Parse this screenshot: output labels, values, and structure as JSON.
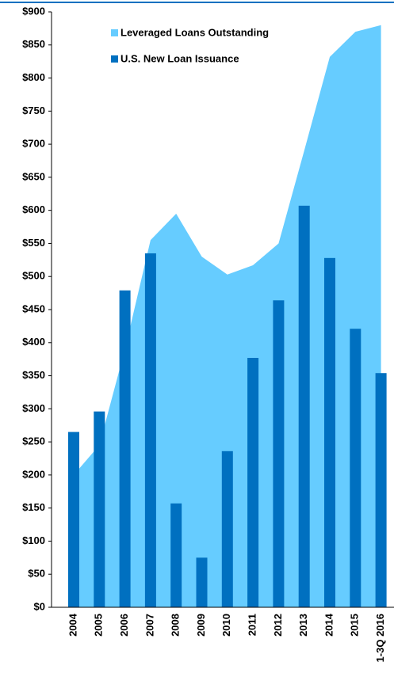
{
  "chart_data": {
    "type": "bar_area",
    "categories": [
      "2004",
      "2005",
      "2006",
      "2007",
      "2008",
      "2009",
      "2010",
      "2011",
      "2012",
      "2013",
      "2014",
      "2015",
      "1-3Q 2016"
    ],
    "series": [
      {
        "name": "Leveraged Loans Outstanding",
        "color": "#66ccff",
        "kind": "area",
        "values": [
          200,
          245,
          390,
          555,
          595,
          530,
          503,
          517,
          550,
          690,
          832,
          870,
          880
        ]
      },
      {
        "name": "U.S. New Loan Issuance",
        "color": "#0070c0",
        "kind": "bar",
        "values": [
          265,
          296,
          479,
          535,
          157,
          75,
          236,
          377,
          464,
          607,
          528,
          421,
          354
        ]
      }
    ],
    "ylim": [
      0,
      900
    ],
    "yticks": [
      {
        "value": 0,
        "label": "$0"
      },
      {
        "value": 50,
        "label": "$50"
      },
      {
        "value": 100,
        "label": "$100"
      },
      {
        "value": 150,
        "label": "$150"
      },
      {
        "value": 200,
        "label": "$200"
      },
      {
        "value": 250,
        "label": "$250"
      },
      {
        "value": 300,
        "label": "$300"
      },
      {
        "value": 350,
        "label": "$350"
      },
      {
        "value": 400,
        "label": "$400"
      },
      {
        "value": 450,
        "label": "$450"
      },
      {
        "value": 500,
        "label": "$500"
      },
      {
        "value": 550,
        "label": "$550"
      },
      {
        "value": 600,
        "label": "$600"
      },
      {
        "value": 650,
        "label": "$650"
      },
      {
        "value": 700,
        "label": "$700"
      },
      {
        "value": 750,
        "label": "$750"
      },
      {
        "value": 800,
        "label": "$800"
      },
      {
        "value": 850,
        "label": "$850"
      },
      {
        "value": 900,
        "label": "$900"
      }
    ],
    "legend": "top-left"
  }
}
